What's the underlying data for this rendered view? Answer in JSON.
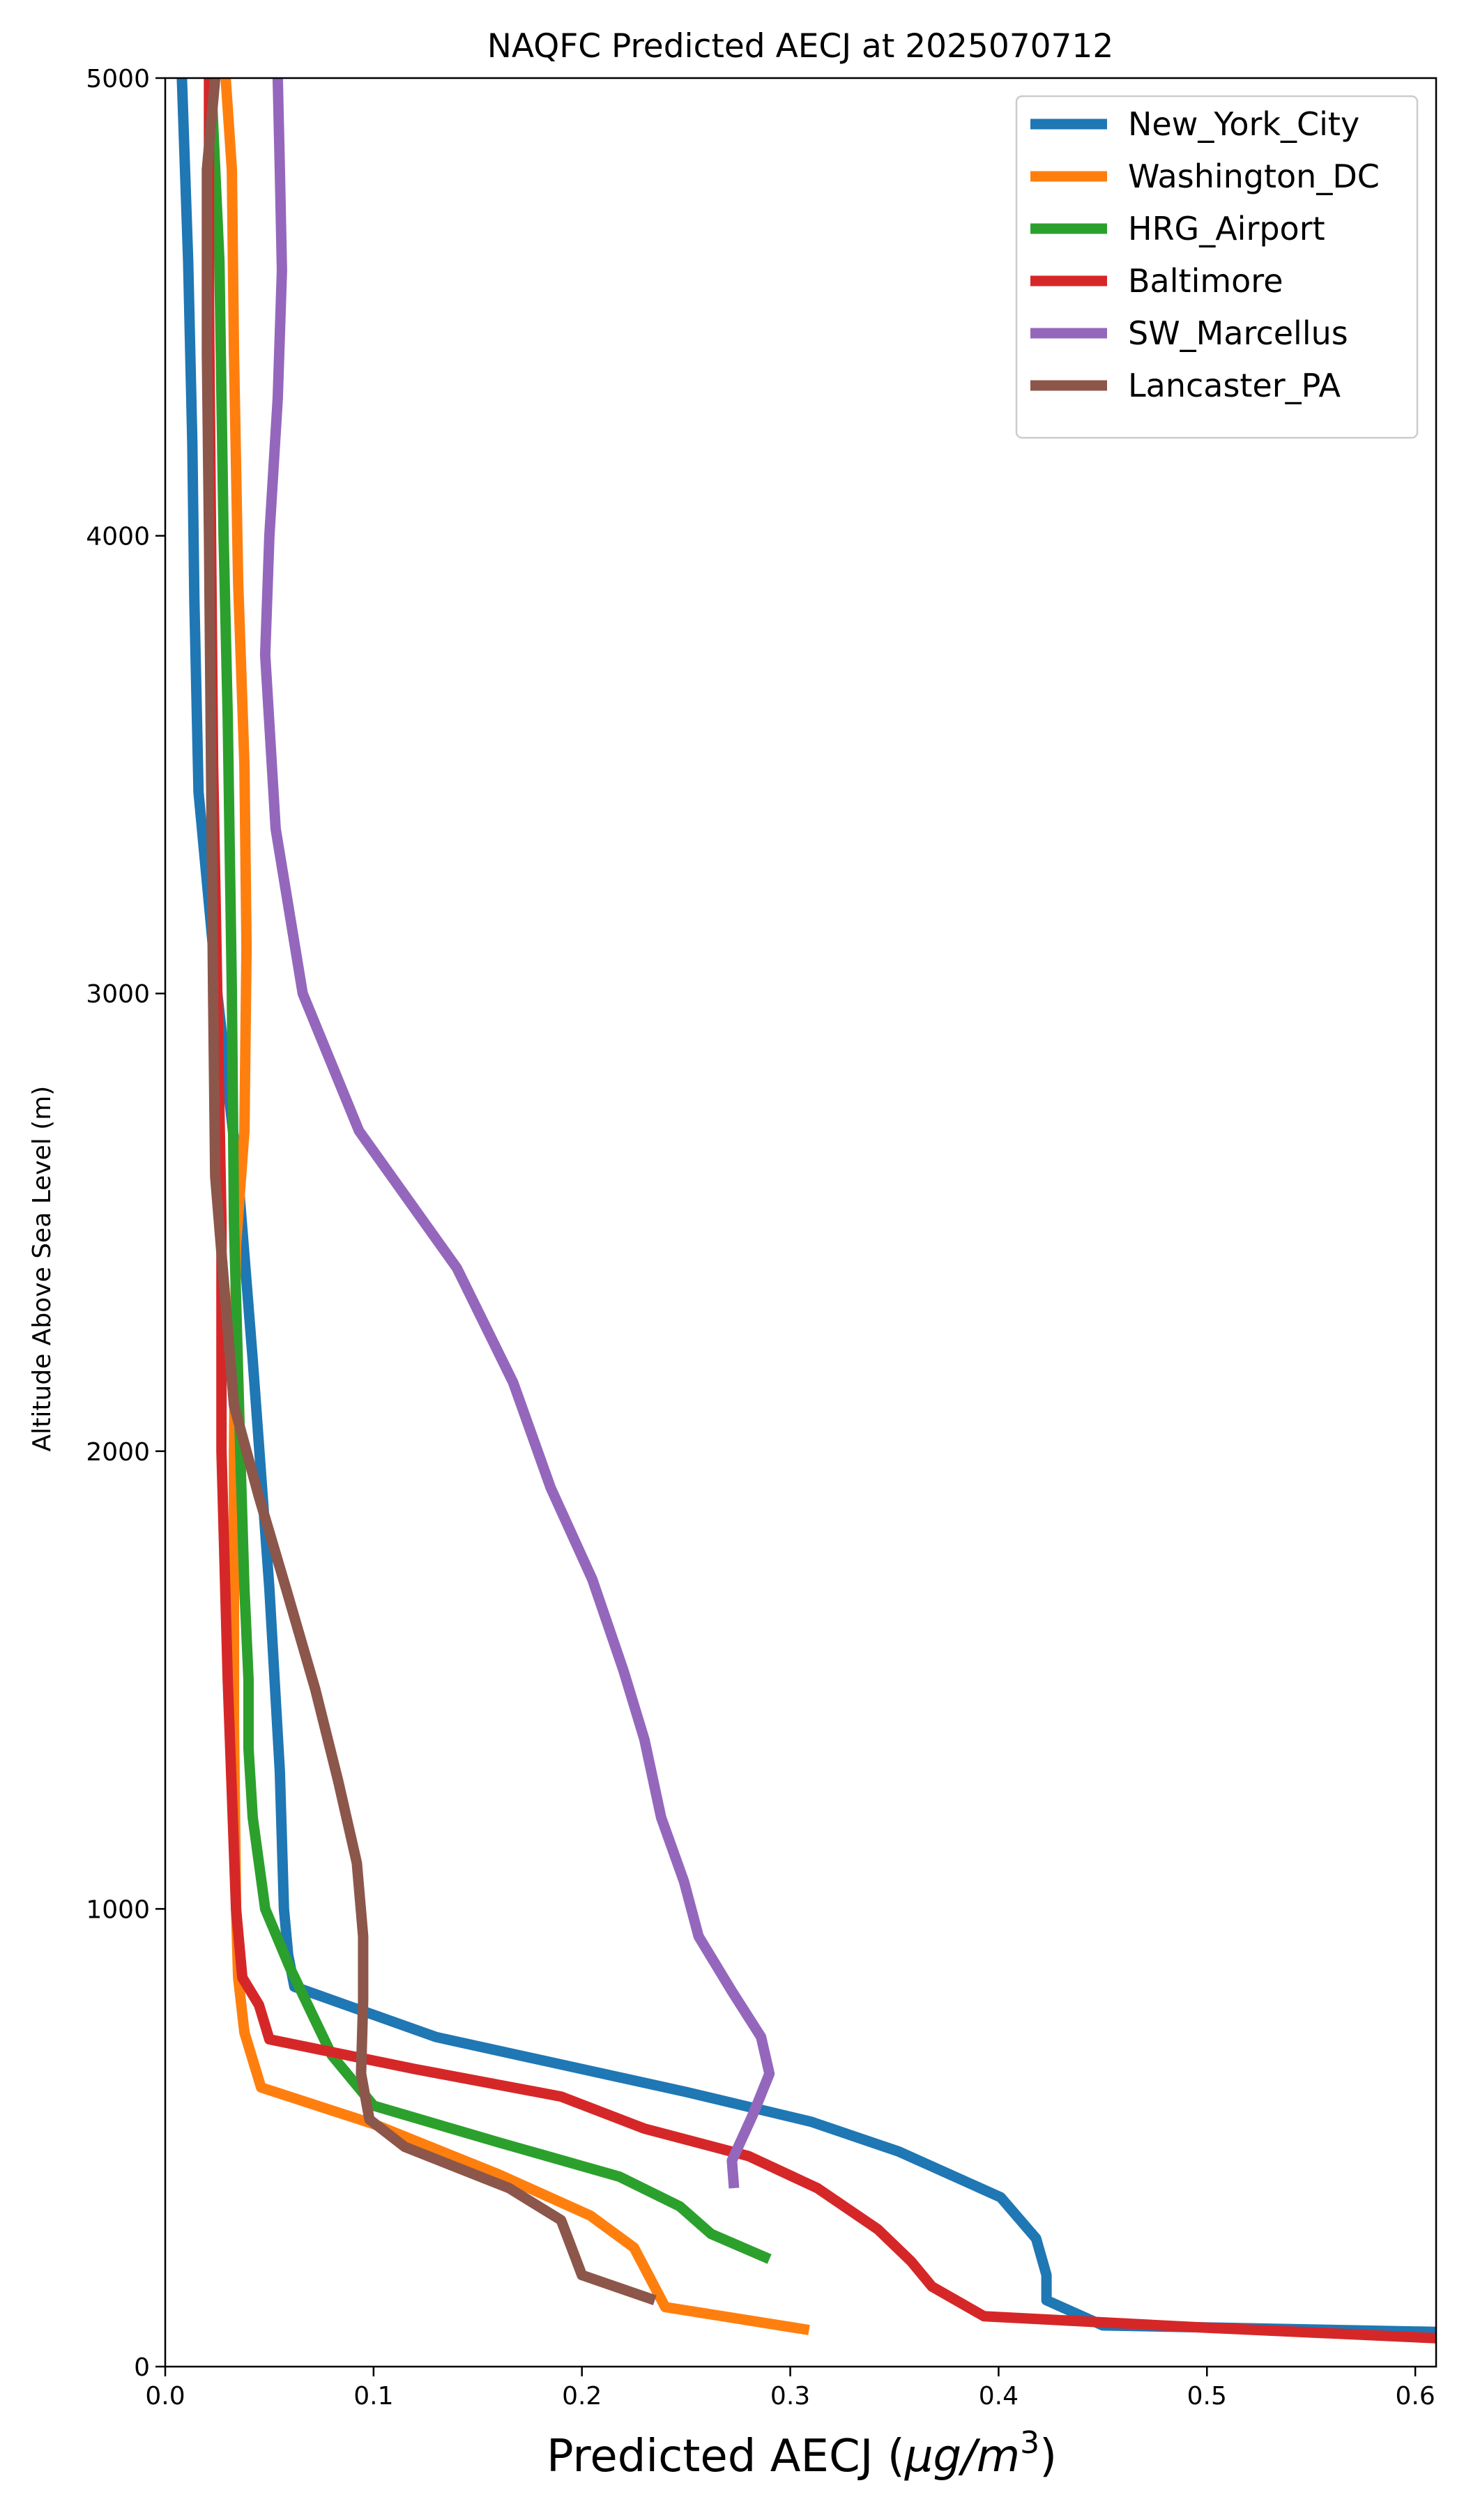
{
  "chart_data": {
    "type": "line",
    "title": "NAQFC Predicted AECJ at 2025070712",
    "xlabel_prefix": "Predicted AECJ (",
    "xlabel_unit": "μg/m",
    "xlabel_sup": "3",
    "xlabel_suffix": ")",
    "ylabel": "Altitude Above Sea Level (m)",
    "xlim": [
      0,
      0.61
    ],
    "ylim": [
      0,
      5000
    ],
    "xticks": [
      0.0,
      0.1,
      0.2,
      0.3,
      0.4,
      0.5,
      0.6
    ],
    "xtick_labels": [
      "0.0",
      "0.1",
      "0.2",
      "0.3",
      "0.4",
      "0.5",
      "0.6"
    ],
    "yticks": [
      0,
      1000,
      2000,
      3000,
      4000,
      5000
    ],
    "ytick_labels": [
      "0",
      "1000",
      "2000",
      "3000",
      "4000",
      "5000"
    ],
    "grid": false,
    "legend_position": "top-right",
    "series": [
      {
        "name": "New_York_City",
        "color": "#1f77b4",
        "points": [
          [
            0.62,
            75
          ],
          [
            0.45,
            90
          ],
          [
            0.423,
            145
          ],
          [
            0.423,
            200
          ],
          [
            0.418,
            280
          ],
          [
            0.401,
            370
          ],
          [
            0.352,
            470
          ],
          [
            0.31,
            535
          ],
          [
            0.25,
            600
          ],
          [
            0.19,
            660
          ],
          [
            0.13,
            720
          ],
          [
            0.062,
            830
          ],
          [
            0.059,
            900
          ],
          [
            0.057,
            1000
          ],
          [
            0.055,
            1300
          ],
          [
            0.05,
            1700
          ],
          [
            0.042,
            2200
          ],
          [
            0.035,
            2600
          ],
          [
            0.025,
            3000
          ],
          [
            0.016,
            3440
          ],
          [
            0.014,
            3860
          ],
          [
            0.013,
            4200
          ],
          [
            0.011,
            4600
          ],
          [
            0.008,
            5000
          ]
        ]
      },
      {
        "name": "Washington_DC",
        "color": "#ff7f0e",
        "points": [
          [
            0.309,
            80
          ],
          [
            0.24,
            130
          ],
          [
            0.225,
            260
          ],
          [
            0.204,
            330
          ],
          [
            0.16,
            420
          ],
          [
            0.1,
            530
          ],
          [
            0.046,
            610
          ],
          [
            0.038,
            730
          ],
          [
            0.035,
            850
          ],
          [
            0.034,
            1000
          ],
          [
            0.033,
            1400
          ],
          [
            0.033,
            2000
          ],
          [
            0.034,
            2450
          ],
          [
            0.038,
            2700
          ],
          [
            0.039,
            3100
          ],
          [
            0.038,
            3500
          ],
          [
            0.035,
            3900
          ],
          [
            0.033,
            4400
          ],
          [
            0.032,
            4800
          ],
          [
            0.029,
            5000
          ]
        ]
      },
      {
        "name": "HRG_Airport",
        "color": "#2ca02c",
        "points": [
          [
            0.29,
            235
          ],
          [
            0.262,
            290
          ],
          [
            0.247,
            350
          ],
          [
            0.218,
            415
          ],
          [
            0.16,
            490
          ],
          [
            0.1,
            570
          ],
          [
            0.08,
            680
          ],
          [
            0.06,
            870
          ],
          [
            0.048,
            1000
          ],
          [
            0.042,
            1200
          ],
          [
            0.04,
            1350
          ],
          [
            0.04,
            1500
          ],
          [
            0.038,
            1700
          ],
          [
            0.036,
            2000
          ],
          [
            0.033,
            2500
          ],
          [
            0.032,
            3000
          ],
          [
            0.03,
            3600
          ],
          [
            0.028,
            4000
          ],
          [
            0.026,
            4600
          ],
          [
            0.022,
            5000
          ]
        ]
      },
      {
        "name": "Baltimore",
        "color": "#d62728",
        "points": [
          [
            0.62,
            60
          ],
          [
            0.5,
            85
          ],
          [
            0.393,
            110
          ],
          [
            0.368,
            175
          ],
          [
            0.358,
            230
          ],
          [
            0.342,
            300
          ],
          [
            0.313,
            390
          ],
          [
            0.28,
            460
          ],
          [
            0.23,
            520
          ],
          [
            0.19,
            590
          ],
          [
            0.12,
            650
          ],
          [
            0.05,
            715
          ],
          [
            0.045,
            790
          ],
          [
            0.037,
            850
          ],
          [
            0.034,
            1000
          ],
          [
            0.03,
            1500
          ],
          [
            0.027,
            2000
          ],
          [
            0.027,
            2500
          ],
          [
            0.025,
            3000
          ],
          [
            0.023,
            3500
          ],
          [
            0.022,
            4000
          ],
          [
            0.021,
            4500
          ],
          [
            0.021,
            5000
          ]
        ]
      },
      {
        "name": "SW_Marcellus",
        "color": "#9467bd",
        "points": [
          [
            0.273,
            390
          ],
          [
            0.272,
            450
          ],
          [
            0.282,
            550
          ],
          [
            0.29,
            640
          ],
          [
            0.286,
            720
          ],
          [
            0.272,
            820
          ],
          [
            0.256,
            940
          ],
          [
            0.249,
            1060
          ],
          [
            0.238,
            1200
          ],
          [
            0.23,
            1370
          ],
          [
            0.22,
            1520
          ],
          [
            0.205,
            1720
          ],
          [
            0.185,
            1920
          ],
          [
            0.167,
            2150
          ],
          [
            0.14,
            2400
          ],
          [
            0.093,
            2700
          ],
          [
            0.066,
            3000
          ],
          [
            0.053,
            3360
          ],
          [
            0.048,
            3740
          ],
          [
            0.05,
            4000
          ],
          [
            0.054,
            4300
          ],
          [
            0.056,
            4580
          ],
          [
            0.055,
            4800
          ],
          [
            0.054,
            5000
          ]
        ]
      },
      {
        "name": "Lancaster_PA",
        "color": "#8c564b",
        "points": [
          [
            0.235,
            145
          ],
          [
            0.2,
            200
          ],
          [
            0.195,
            260
          ],
          [
            0.19,
            320
          ],
          [
            0.165,
            390
          ],
          [
            0.115,
            480
          ],
          [
            0.098,
            540
          ],
          [
            0.094,
            640
          ],
          [
            0.095,
            800
          ],
          [
            0.095,
            940
          ],
          [
            0.092,
            1100
          ],
          [
            0.083,
            1280
          ],
          [
            0.072,
            1480
          ],
          [
            0.058,
            1700
          ],
          [
            0.045,
            1900
          ],
          [
            0.033,
            2100
          ],
          [
            0.024,
            2600
          ],
          [
            0.023,
            3000
          ],
          [
            0.022,
            3500
          ],
          [
            0.021,
            4000
          ],
          [
            0.02,
            4400
          ],
          [
            0.02,
            4800
          ],
          [
            0.024,
            5000
          ]
        ]
      }
    ]
  }
}
